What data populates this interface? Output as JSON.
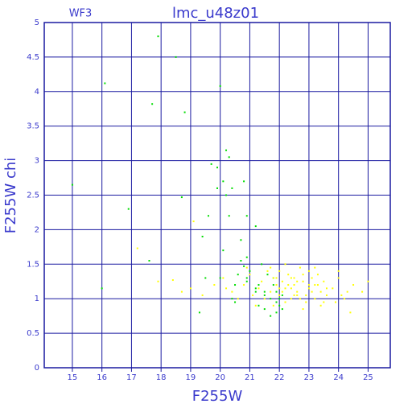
{
  "chart_data": {
    "type": "scatter",
    "title": "lmc_u48z01",
    "corner_label": "WF3",
    "x_label": "F255W",
    "y_label": "F255W chi",
    "xlim": [
      14.05,
      25.75
    ],
    "ylim": [
      0,
      5
    ],
    "xticks": [
      15,
      16,
      17,
      18,
      19,
      20,
      21,
      22,
      23,
      24,
      25
    ],
    "yticks": [
      0,
      0.5,
      1,
      1.5,
      2,
      2.5,
      3,
      3.5,
      4,
      4.5,
      5
    ],
    "grid": true,
    "grid_color": "#1a1aa0",
    "text_color": "#3a3acc",
    "series": [
      {
        "color": "#00dd00",
        "x": [
          15.0,
          16.1,
          17.9,
          18.5,
          17.7,
          18.8,
          20.0,
          16.9,
          18.7,
          19.7,
          19.9,
          20.2,
          20.3,
          20.1,
          20.4,
          19.9,
          20.2,
          19.6,
          20.3,
          19.4,
          20.8,
          20.9,
          21.2,
          20.7,
          20.1,
          20.9,
          20.7,
          20.8,
          21.0,
          20.6,
          17.6,
          16.0,
          19.5,
          19.3,
          20.0,
          20.9,
          21.3,
          21.5,
          21.7,
          21.9,
          22.0,
          22.1,
          21.6,
          21.4,
          21.8,
          21.3,
          21.5,
          22.0,
          21.2,
          21.9,
          21.7,
          20.5,
          21.8,
          22.1,
          20.4,
          20.5,
          20.9,
          21.2,
          21.9,
          21.5
        ],
        "values": [
          2.65,
          4.12,
          4.8,
          4.5,
          3.82,
          3.7,
          4.08,
          2.3,
          2.47,
          2.95,
          2.9,
          3.15,
          3.05,
          2.7,
          2.6,
          2.6,
          2.5,
          2.2,
          2.2,
          1.9,
          2.7,
          2.2,
          2.05,
          1.85,
          1.7,
          1.6,
          1.55,
          1.47,
          1.4,
          1.35,
          1.55,
          1.15,
          1.3,
          0.8,
          1.3,
          1.25,
          1.2,
          1.1,
          1.0,
          0.95,
          0.9,
          0.85,
          1.35,
          1.5,
          1.2,
          0.9,
          1.05,
          1.0,
          1.15,
          0.8,
          0.75,
          0.95,
          1.3,
          1.05,
          1.0,
          1.2,
          1.3,
          1.1,
          1.1,
          0.85
        ]
      },
      {
        "color": "#ffff00",
        "x": [
          17.2,
          19.1,
          17.9,
          18.4,
          18.7,
          19.0,
          19.4,
          19.8,
          20.1,
          20.4,
          20.6,
          20.8,
          21.0,
          21.1,
          21.3,
          21.4,
          21.6,
          21.7,
          21.8,
          21.9,
          22.0,
          22.1,
          22.2,
          22.3,
          22.4,
          22.5,
          22.6,
          22.7,
          22.8,
          22.9,
          23.0,
          23.1,
          23.2,
          23.3,
          23.4,
          23.5,
          23.6,
          23.8,
          24.0,
          24.2,
          24.5,
          24.8,
          25.0,
          22.0,
          22.2,
          22.4,
          22.6,
          22.8,
          23.0,
          23.2,
          23.4,
          21.5,
          21.8,
          22.1,
          22.3,
          22.5,
          22.7,
          22.9,
          23.1,
          23.3,
          23.6,
          23.9,
          24.1,
          24.3,
          21.2,
          20.9,
          20.2,
          22.4,
          22.6,
          22.8,
          23.0,
          22.2,
          21.9,
          21.7,
          23.5,
          24.0,
          24.4,
          22.0,
          22.5,
          23.2
        ],
        "values": [
          1.73,
          2.12,
          1.25,
          1.27,
          1.1,
          1.15,
          1.05,
          1.2,
          1.3,
          1.1,
          1.0,
          1.2,
          1.35,
          1.05,
          1.15,
          1.25,
          1.4,
          1.1,
          1.3,
          1.2,
          1.05,
          1.25,
          1.15,
          1.35,
          1.0,
          1.2,
          1.1,
          1.45,
          1.25,
          1.05,
          1.15,
          1.3,
          1.0,
          1.2,
          1.1,
          1.25,
          1.05,
          1.15,
          1.3,
          1.0,
          1.2,
          1.1,
          1.25,
          1.4,
          0.95,
          1.3,
          1.05,
          1.35,
          1.2,
          1.45,
          0.9,
          1.0,
          0.9,
          1.1,
          1.2,
          1.3,
          1.0,
          0.95,
          1.1,
          1.35,
          1.15,
          0.95,
          1.05,
          1.1,
          0.9,
          1.45,
          1.15,
          1.15,
          1.25,
          0.85,
          1.4,
          1.5,
          1.3,
          1.45,
          0.95,
          1.4,
          0.8,
          1.15,
          1.05,
          1.2
        ]
      }
    ]
  }
}
